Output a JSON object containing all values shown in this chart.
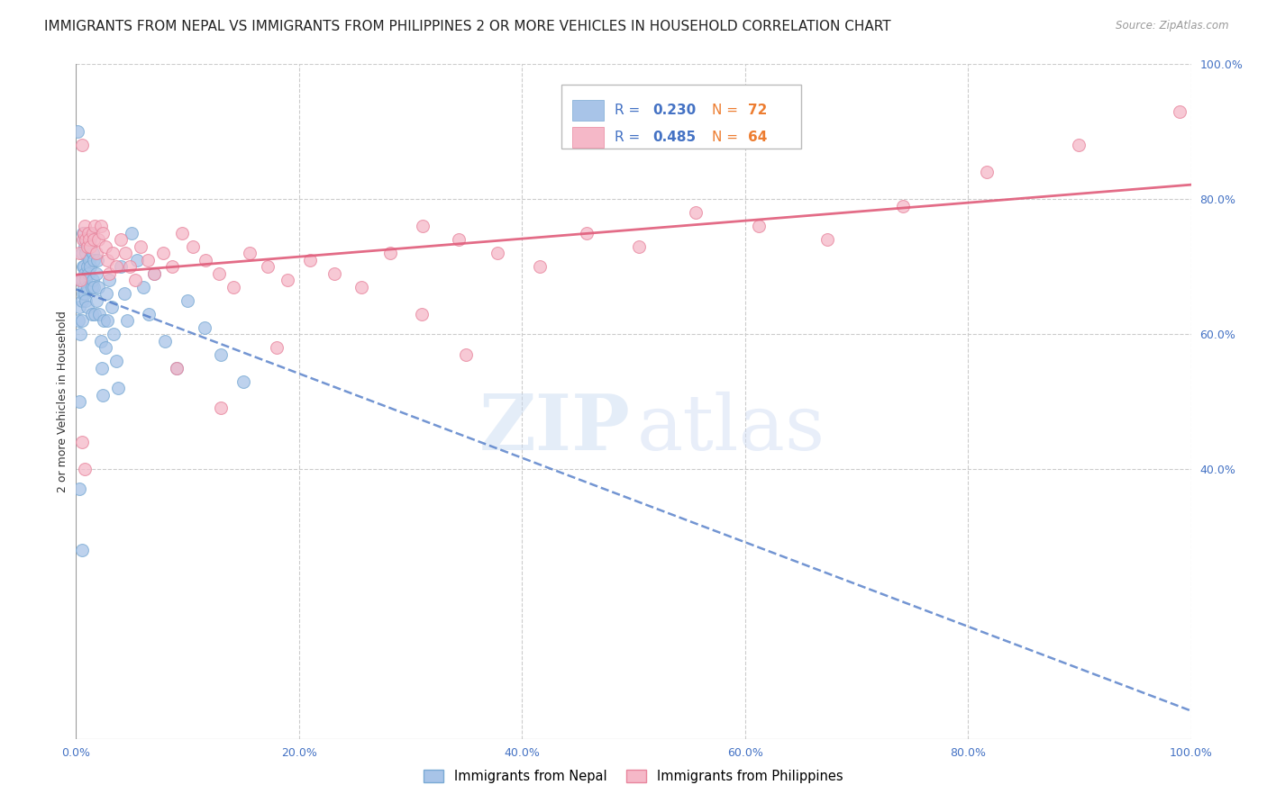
{
  "title": "IMMIGRANTS FROM NEPAL VS IMMIGRANTS FROM PHILIPPINES 2 OR MORE VEHICLES IN HOUSEHOLD CORRELATION CHART",
  "source": "Source: ZipAtlas.com",
  "ylabel": "2 or more Vehicles in Household",
  "xlim": [
    0.0,
    1.0
  ],
  "ylim": [
    0.0,
    1.0
  ],
  "x_tick_labels": [
    "0.0%",
    "20.0%",
    "40.0%",
    "60.0%",
    "80.0%",
    "100.0%"
  ],
  "x_tick_vals": [
    0.0,
    0.2,
    0.4,
    0.6,
    0.8,
    1.0
  ],
  "y_tick_labels_right": [
    "40.0%",
    "60.0%",
    "80.0%",
    "100.0%"
  ],
  "y_tick_vals_right": [
    0.4,
    0.6,
    0.8,
    1.0
  ],
  "nepal_color": "#a8c4e8",
  "nepal_edge_color": "#7aaad4",
  "philippines_color": "#f5b8c8",
  "philippines_edge_color": "#e8859d",
  "nepal_R": 0.23,
  "nepal_N": 72,
  "philippines_R": 0.485,
  "philippines_N": 64,
  "legend_R_color": "#4472c4",
  "legend_N_color": "#ed7d31",
  "trendline_nepal_color": "#4472c4",
  "trendline_philippines_color": "#e05c7a",
  "bg_color": "#ffffff",
  "grid_color": "#cccccc",
  "title_fontsize": 11,
  "axis_label_fontsize": 9,
  "tick_fontsize": 9,
  "nepal_x": [
    0.001,
    0.002,
    0.003,
    0.003,
    0.004,
    0.004,
    0.005,
    0.005,
    0.005,
    0.005,
    0.006,
    0.006,
    0.006,
    0.007,
    0.007,
    0.007,
    0.008,
    0.008,
    0.008,
    0.009,
    0.009,
    0.009,
    0.01,
    0.01,
    0.01,
    0.01,
    0.011,
    0.011,
    0.012,
    0.012,
    0.013,
    0.013,
    0.014,
    0.014,
    0.015,
    0.015,
    0.016,
    0.016,
    0.017,
    0.018,
    0.018,
    0.019,
    0.02,
    0.021,
    0.022,
    0.023,
    0.024,
    0.025,
    0.026,
    0.027,
    0.028,
    0.03,
    0.032,
    0.034,
    0.036,
    0.038,
    0.04,
    0.043,
    0.046,
    0.05,
    0.055,
    0.06,
    0.065,
    0.07,
    0.08,
    0.09,
    0.1,
    0.115,
    0.13,
    0.15,
    0.003,
    0.005
  ],
  "nepal_y": [
    0.9,
    0.62,
    0.5,
    0.64,
    0.6,
    0.68,
    0.72,
    0.68,
    0.65,
    0.62,
    0.75,
    0.7,
    0.66,
    0.74,
    0.7,
    0.67,
    0.73,
    0.69,
    0.66,
    0.72,
    0.68,
    0.65,
    0.74,
    0.7,
    0.67,
    0.64,
    0.73,
    0.69,
    0.75,
    0.71,
    0.74,
    0.7,
    0.67,
    0.63,
    0.72,
    0.68,
    0.71,
    0.67,
    0.63,
    0.69,
    0.65,
    0.71,
    0.67,
    0.63,
    0.59,
    0.55,
    0.51,
    0.62,
    0.58,
    0.66,
    0.62,
    0.68,
    0.64,
    0.6,
    0.56,
    0.52,
    0.7,
    0.66,
    0.62,
    0.75,
    0.71,
    0.67,
    0.63,
    0.69,
    0.59,
    0.55,
    0.65,
    0.61,
    0.57,
    0.53,
    0.37,
    0.28
  ],
  "philippines_x": [
    0.003,
    0.004,
    0.005,
    0.006,
    0.007,
    0.008,
    0.009,
    0.01,
    0.011,
    0.012,
    0.013,
    0.015,
    0.016,
    0.017,
    0.018,
    0.02,
    0.022,
    0.024,
    0.026,
    0.028,
    0.03,
    0.033,
    0.036,
    0.04,
    0.044,
    0.048,
    0.053,
    0.058,
    0.064,
    0.07,
    0.078,
    0.086,
    0.095,
    0.105,
    0.116,
    0.128,
    0.141,
    0.156,
    0.172,
    0.19,
    0.21,
    0.232,
    0.256,
    0.282,
    0.311,
    0.343,
    0.378,
    0.416,
    0.458,
    0.505,
    0.556,
    0.612,
    0.674,
    0.742,
    0.817,
    0.899,
    0.99,
    0.31,
    0.35,
    0.18,
    0.09,
    0.13,
    0.005,
    0.008
  ],
  "philippines_y": [
    0.72,
    0.68,
    0.88,
    0.74,
    0.75,
    0.76,
    0.74,
    0.73,
    0.75,
    0.74,
    0.73,
    0.75,
    0.74,
    0.76,
    0.72,
    0.74,
    0.76,
    0.75,
    0.73,
    0.71,
    0.69,
    0.72,
    0.7,
    0.74,
    0.72,
    0.7,
    0.68,
    0.73,
    0.71,
    0.69,
    0.72,
    0.7,
    0.75,
    0.73,
    0.71,
    0.69,
    0.67,
    0.72,
    0.7,
    0.68,
    0.71,
    0.69,
    0.67,
    0.72,
    0.76,
    0.74,
    0.72,
    0.7,
    0.75,
    0.73,
    0.78,
    0.76,
    0.74,
    0.79,
    0.84,
    0.88,
    0.93,
    0.63,
    0.57,
    0.58,
    0.55,
    0.49,
    0.44,
    0.4
  ]
}
